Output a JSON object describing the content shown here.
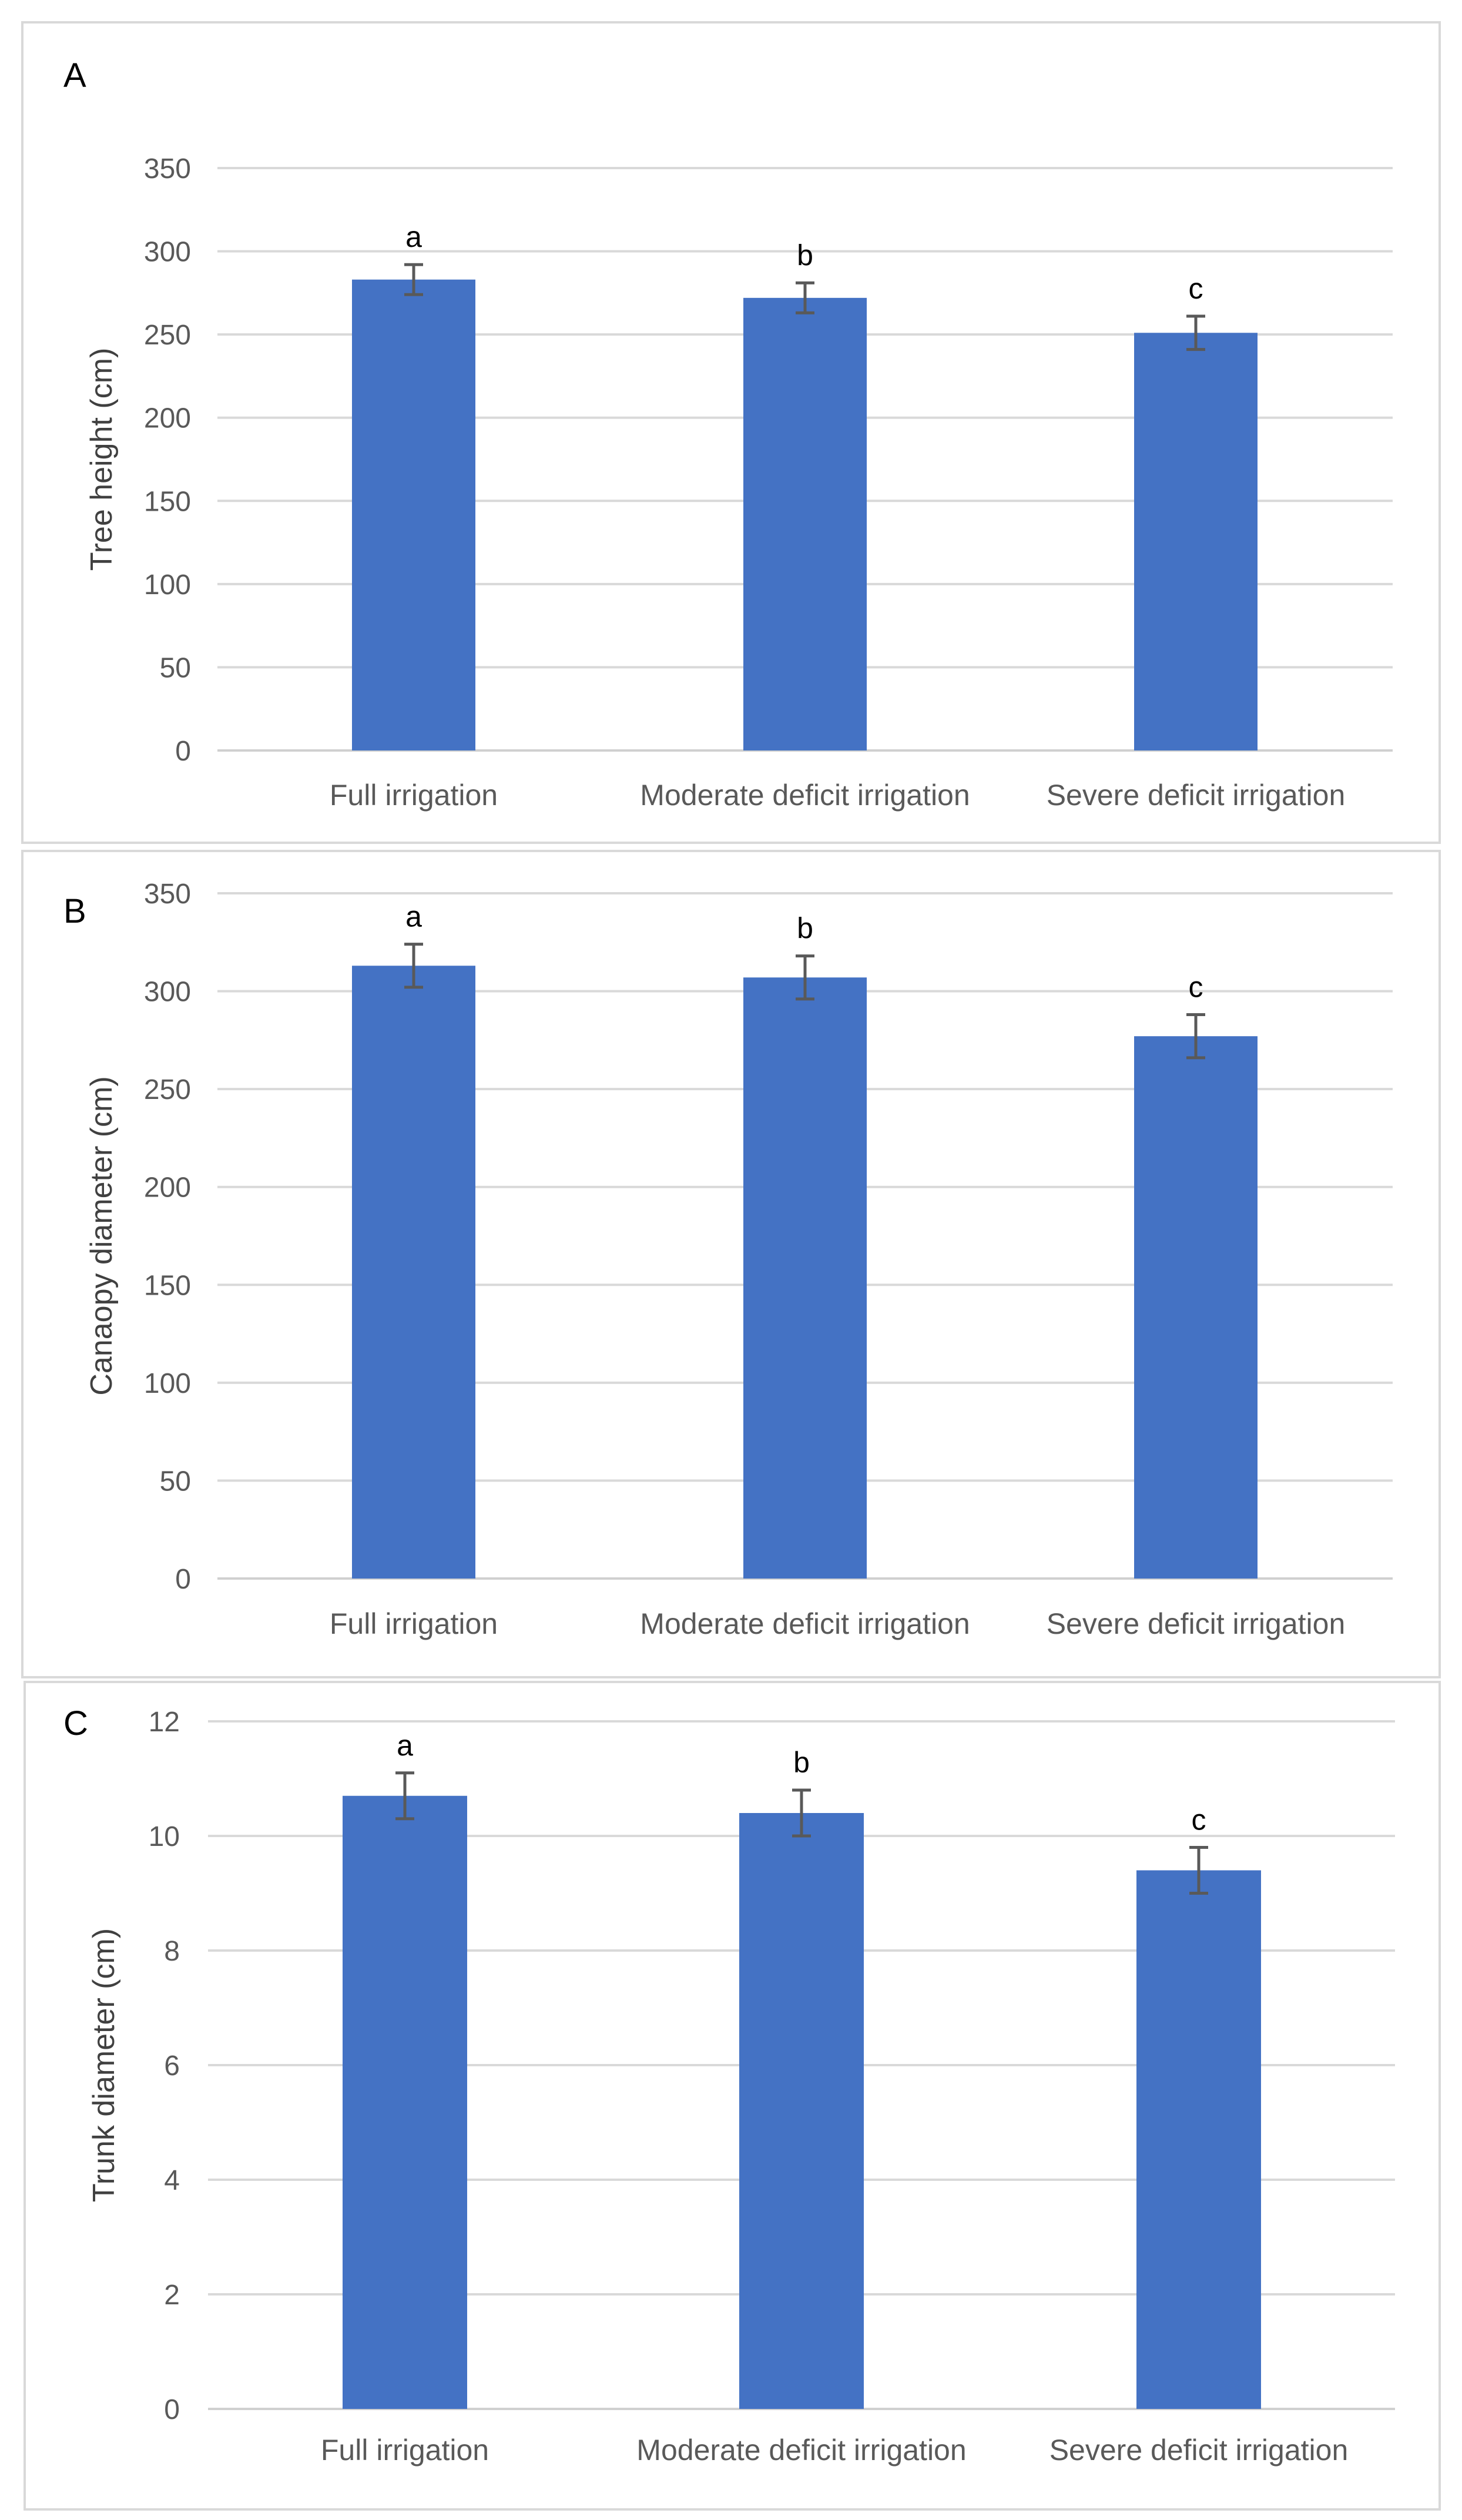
{
  "chart_data": [
    {
      "type": "bar",
      "panel": "A",
      "categories": [
        "Full irrigation",
        "Moderate deficit irrigation",
        "Severe deficit irrigation"
      ],
      "values": [
        283,
        272,
        251
      ],
      "errors": [
        9,
        9,
        10
      ],
      "significance": [
        "a",
        "b",
        "c"
      ],
      "ylabel": "Tree height (cm)",
      "xlabel": "",
      "ylim": [
        0,
        350
      ],
      "yticks": [
        0,
        50,
        100,
        150,
        200,
        250,
        300,
        350
      ],
      "grid": true,
      "color": "#4472c4"
    },
    {
      "type": "bar",
      "panel": "B",
      "categories": [
        "Full irrigation",
        "Moderate deficit irrigation",
        "Severe deficit irrigation"
      ],
      "values": [
        313,
        307,
        277
      ],
      "errors": [
        11,
        11,
        11
      ],
      "significance": [
        "a",
        "b",
        "c"
      ],
      "ylabel": "Canaopy diameter (cm)",
      "xlabel": "",
      "ylim": [
        0,
        350
      ],
      "yticks": [
        0,
        50,
        100,
        150,
        200,
        250,
        300,
        350
      ],
      "grid": true,
      "color": "#4472c4"
    },
    {
      "type": "bar",
      "panel": "C",
      "categories": [
        "Full irrigation",
        "Moderate deficit irrigation",
        "Severe deficit irrigation"
      ],
      "values": [
        10.7,
        10.4,
        9.4
      ],
      "errors": [
        0.4,
        0.4,
        0.4
      ],
      "significance": [
        "a",
        "b",
        "c"
      ],
      "ylabel": "Trunk diameter (cm)",
      "xlabel": "",
      "ylim": [
        0,
        12
      ],
      "yticks": [
        0,
        2,
        4,
        6,
        8,
        10,
        12
      ],
      "grid": true,
      "color": "#4472c4"
    }
  ]
}
